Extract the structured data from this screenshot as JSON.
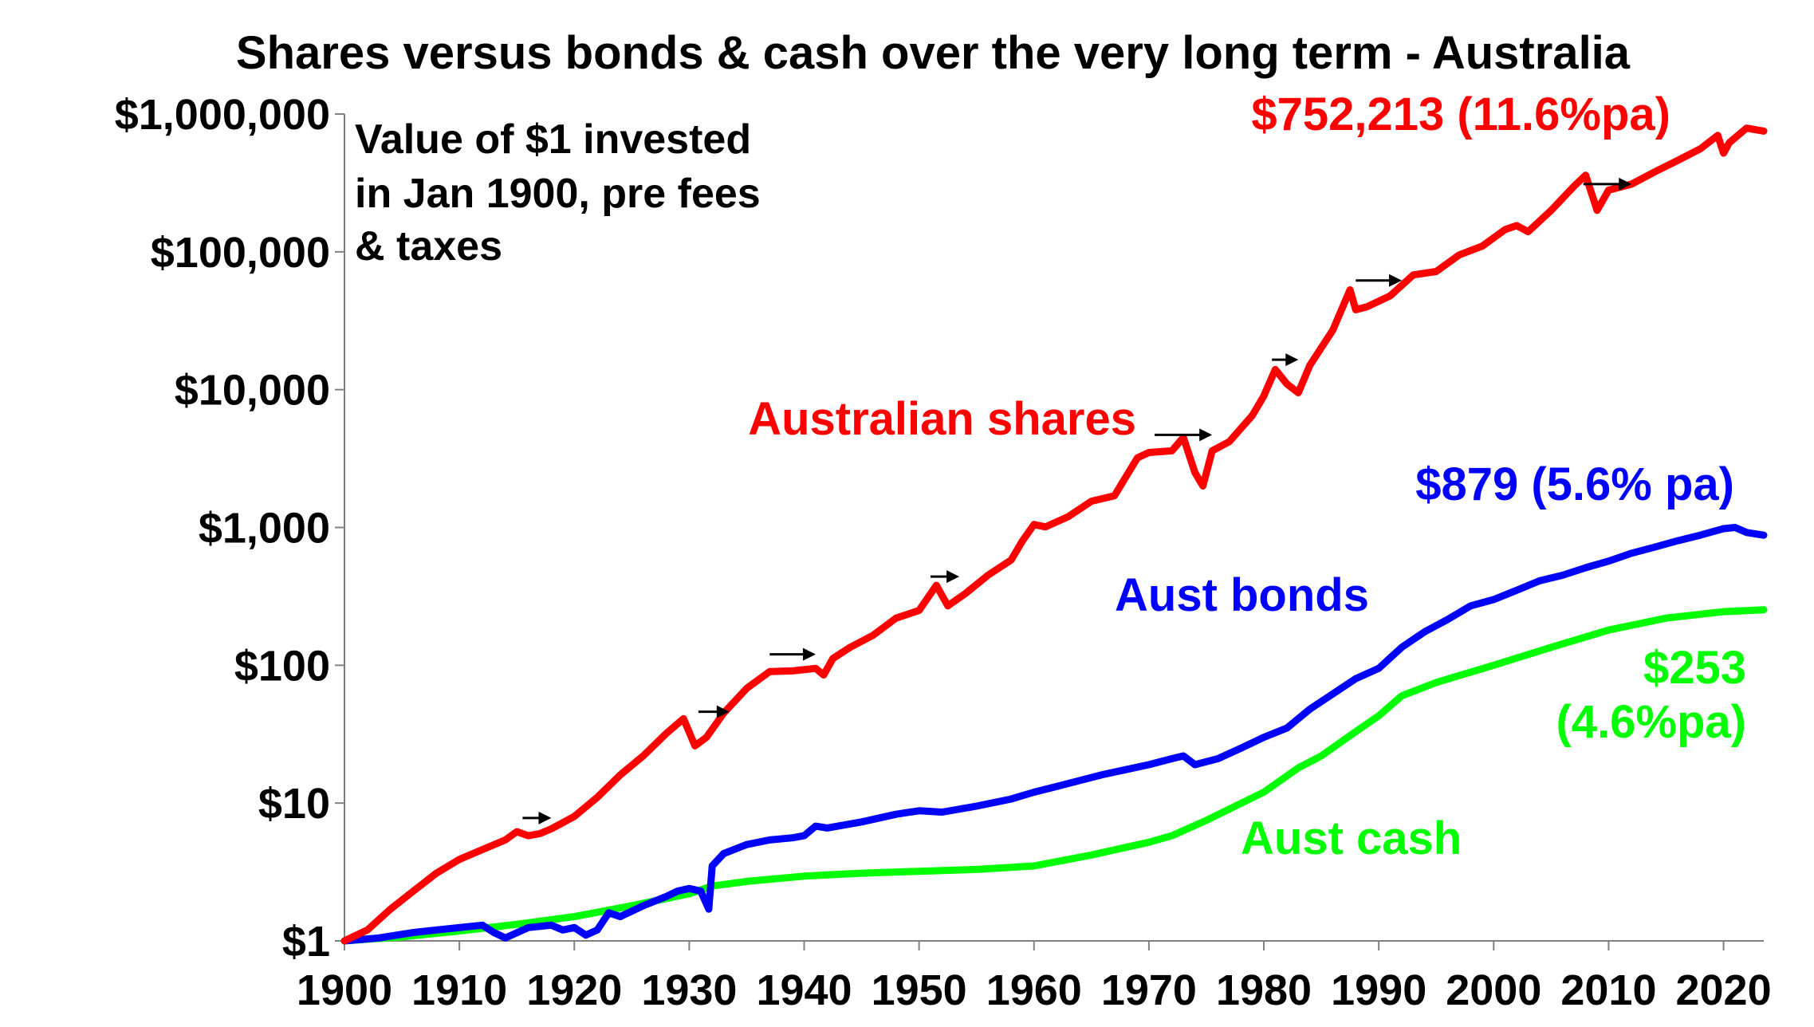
{
  "chart_data": {
    "type": "line",
    "title": "Shares versus bonds & cash over the very long term - Australia",
    "annotation": [
      "Value of $1 invested",
      "in Jan 1900, pre fees",
      "& taxes"
    ],
    "y_scale": "log",
    "ylim": [
      1,
      1000000
    ],
    "xlim": [
      1900,
      2023.5
    ],
    "x_ticks": [
      1900,
      1910,
      1920,
      1930,
      1940,
      1950,
      1960,
      1970,
      1980,
      1990,
      2000,
      2010,
      2020
    ],
    "x_tick_labels": [
      "1900",
      "1910",
      "1920",
      "1930",
      "1940",
      "1950",
      "1960",
      "1970",
      "1980",
      "1990",
      "2000",
      "2010",
      "2020"
    ],
    "y_ticks": [
      1,
      10,
      100,
      1000,
      10000,
      100000,
      1000000
    ],
    "y_tick_labels": [
      "$1",
      "$10",
      "$100",
      "$1,000",
      "$10,000",
      "$100,000",
      "$1,000,000"
    ],
    "grid": false,
    "series": [
      {
        "name": "Australian shares",
        "color": "#ff0000",
        "end_label": "$752,213 (11.6%pa)",
        "x": [
          1900,
          1902,
          1904,
          1906,
          1908,
          1910,
          1912,
          1914,
          1915,
          1916,
          1917,
          1918,
          1920,
          1922,
          1924,
          1926,
          1928,
          1929.5,
          1930.5,
          1931.5,
          1933,
          1935,
          1937,
          1939,
          1941,
          1941.7,
          1942.5,
          1944,
          1946,
          1948,
          1950,
          1951.5,
          1952.5,
          1954,
          1956,
          1958,
          1959,
          1960,
          1961,
          1963,
          1965,
          1967,
          1969,
          1970,
          1972,
          1973,
          1974,
          1974.7,
          1975.5,
          1977,
          1979,
          1980,
          1981,
          1982,
          1983,
          1984,
          1986,
          1987.5,
          1988,
          1989,
          1991,
          1993,
          1995,
          1997,
          1999,
          2001,
          2002,
          2003,
          2005,
          2007,
          2008,
          2009,
          2010,
          2012,
          2014,
          2016,
          2018,
          2019.5,
          2020,
          2020.5,
          2022,
          2023.5
        ],
        "values": [
          1,
          1.2,
          1.7,
          2.3,
          3.1,
          3.9,
          4.6,
          5.4,
          6.2,
          5.8,
          6.0,
          6.5,
          8,
          11,
          16,
          22,
          32,
          41,
          26,
          30,
          45,
          68,
          90,
          91,
          95,
          85,
          112,
          135,
          165,
          220,
          250,
          380,
          270,
          330,
          450,
          580,
          800,
          1050,
          1010,
          1200,
          1550,
          1700,
          3200,
          3500,
          3600,
          4500,
          2500,
          2000,
          3600,
          4200,
          6500,
          9000,
          14000,
          11000,
          9500,
          15000,
          27000,
          53000,
          38000,
          40000,
          48000,
          68000,
          72000,
          95000,
          110000,
          145000,
          155000,
          140000,
          200000,
          300000,
          360000,
          200000,
          280000,
          310000,
          380000,
          460000,
          560000,
          700000,
          520000,
          620000,
          790000,
          752213
        ]
      },
      {
        "name": "Aust bonds",
        "color": "#0000ff",
        "end_label": "$879 (5.6% pa)",
        "x": [
          1900,
          1903,
          1906,
          1908,
          1910,
          1912,
          1913,
          1914,
          1916,
          1918,
          1919,
          1920,
          1921,
          1922,
          1923,
          1924,
          1926,
          1928,
          1929,
          1930,
          1931,
          1931.7,
          1932,
          1933,
          1935,
          1937,
          1939,
          1940,
          1941,
          1942,
          1945,
          1948,
          1950,
          1952,
          1955,
          1958,
          1960,
          1962,
          1964,
          1966,
          1968,
          1970,
          1972,
          1973,
          1974,
          1976,
          1978,
          1980,
          1982,
          1984,
          1986,
          1988,
          1990,
          1992,
          1994,
          1996,
          1998,
          2000,
          2002,
          2004,
          2006,
          2008,
          2010,
          2012,
          2014,
          2016,
          2018,
          2020,
          2021,
          2022,
          2023.5
        ],
        "values": [
          1,
          1.05,
          1.15,
          1.2,
          1.25,
          1.3,
          1.15,
          1.05,
          1.25,
          1.3,
          1.2,
          1.25,
          1.1,
          1.2,
          1.6,
          1.5,
          1.8,
          2.1,
          2.3,
          2.4,
          2.3,
          1.7,
          3.5,
          4.3,
          5.0,
          5.4,
          5.6,
          5.8,
          6.8,
          6.6,
          7.3,
          8.3,
          8.8,
          8.6,
          9.5,
          10.7,
          12,
          13.2,
          14.6,
          16.1,
          17.5,
          19,
          21,
          22,
          19,
          21,
          25,
          30,
          35,
          48,
          62,
          80,
          95,
          135,
          175,
          215,
          270,
          300,
          350,
          410,
          450,
          510,
          570,
          650,
          720,
          800,
          880,
          980,
          1000,
          920,
          879
        ]
      },
      {
        "name": "Aust cash",
        "color": "#00ff00",
        "end_label_lines": [
          "$253",
          "(4.6%pa)"
        ],
        "x": [
          1900,
          1905,
          1910,
          1915,
          1920,
          1925,
          1930,
          1932,
          1935,
          1940,
          1945,
          1950,
          1955,
          1960,
          1965,
          1970,
          1972,
          1975,
          1980,
          1983,
          1985,
          1988,
          1990,
          1992,
          1995,
          2000,
          2005,
          2010,
          2015,
          2020,
          2023.5
        ],
        "values": [
          1,
          1.07,
          1.18,
          1.32,
          1.5,
          1.8,
          2.2,
          2.5,
          2.7,
          2.95,
          3.1,
          3.2,
          3.3,
          3.5,
          4.2,
          5.2,
          5.8,
          7.5,
          12,
          18,
          22,
          33,
          43,
          60,
          75,
          100,
          135,
          180,
          220,
          245,
          253
        ]
      }
    ]
  }
}
